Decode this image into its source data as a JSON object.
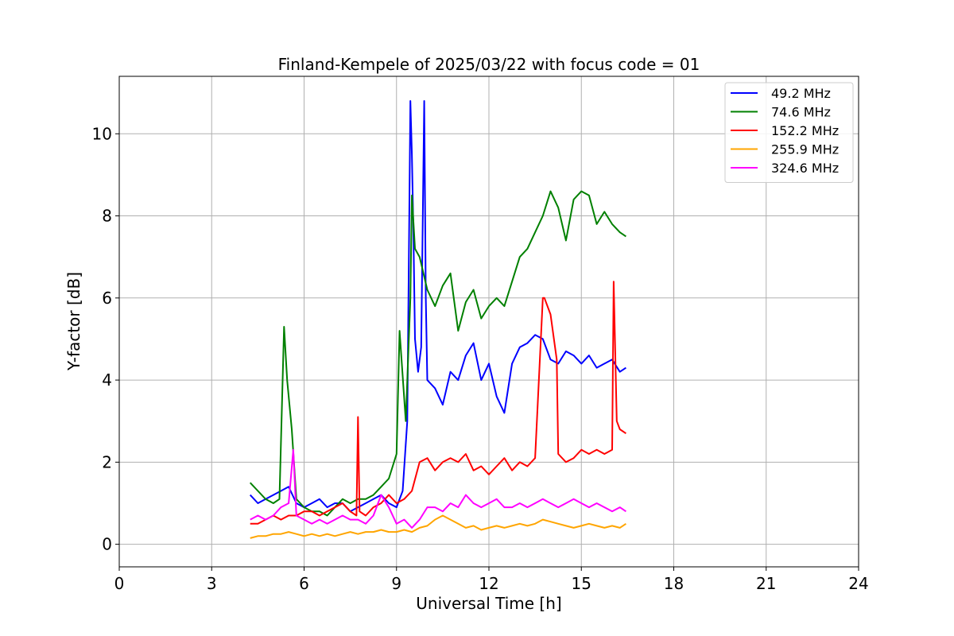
{
  "chart_data": {
    "type": "line",
    "title": "Finland-Kempele of 2025/03/22 with focus code = 01",
    "xlabel": "Universal Time [h]",
    "ylabel": "Y-factor [dB]",
    "xlim": [
      0,
      24
    ],
    "ylim": [
      -0.55,
      11.4
    ],
    "xticks": [
      0,
      3,
      6,
      9,
      12,
      15,
      18,
      21,
      24
    ],
    "yticks": [
      0,
      2,
      4,
      6,
      8,
      10
    ],
    "grid": true,
    "legend_position": "top-right",
    "series": [
      {
        "name": " 49.2 MHz",
        "color": "#0000ff",
        "x": [
          4.25,
          4.5,
          4.75,
          5.0,
          5.25,
          5.5,
          5.75,
          6.0,
          6.25,
          6.5,
          6.75,
          7.0,
          7.25,
          7.5,
          7.75,
          8.0,
          8.25,
          8.5,
          8.75,
          9.0,
          9.2,
          9.35,
          9.45,
          9.5,
          9.55,
          9.6,
          9.7,
          9.8,
          9.9,
          9.95,
          10.0,
          10.25,
          10.5,
          10.75,
          11.0,
          11.25,
          11.5,
          11.75,
          12.0,
          12.25,
          12.5,
          12.75,
          13.0,
          13.25,
          13.5,
          13.75,
          14.0,
          14.25,
          14.5,
          14.75,
          15.0,
          15.25,
          15.5,
          15.75,
          16.0,
          16.25,
          16.45
        ],
        "y": [
          1.2,
          1.0,
          1.1,
          1.2,
          1.3,
          1.4,
          1.0,
          0.9,
          1.0,
          1.1,
          0.9,
          1.0,
          1.0,
          0.8,
          0.9,
          1.0,
          1.1,
          1.2,
          1.0,
          0.9,
          1.3,
          3.0,
          10.8,
          9.5,
          7.5,
          5.0,
          4.2,
          4.8,
          10.8,
          6.0,
          4.0,
          3.8,
          3.4,
          4.2,
          4.0,
          4.6,
          4.9,
          4.0,
          4.4,
          3.6,
          3.2,
          4.4,
          4.8,
          4.9,
          5.1,
          5.0,
          4.5,
          4.4,
          4.7,
          4.6,
          4.4,
          4.6,
          4.3,
          4.4,
          4.5,
          4.2,
          4.3
        ]
      },
      {
        "name": " 74.6 MHz",
        "color": "#008000",
        "x": [
          4.25,
          4.5,
          4.75,
          5.0,
          5.2,
          5.35,
          5.45,
          5.6,
          5.75,
          6.0,
          6.25,
          6.5,
          6.75,
          7.0,
          7.25,
          7.5,
          7.75,
          8.0,
          8.25,
          8.5,
          8.75,
          9.0,
          9.1,
          9.3,
          9.45,
          9.5,
          9.6,
          9.75,
          10.0,
          10.25,
          10.5,
          10.75,
          11.0,
          11.25,
          11.5,
          11.75,
          12.0,
          12.25,
          12.5,
          12.75,
          13.0,
          13.25,
          13.5,
          13.75,
          14.0,
          14.25,
          14.5,
          14.75,
          15.0,
          15.25,
          15.5,
          15.75,
          16.0,
          16.25,
          16.45
        ],
        "y": [
          1.5,
          1.3,
          1.1,
          1.0,
          1.1,
          5.3,
          4.0,
          2.8,
          1.1,
          0.9,
          0.8,
          0.8,
          0.7,
          0.9,
          1.1,
          1.0,
          1.1,
          1.1,
          1.2,
          1.4,
          1.6,
          2.2,
          5.2,
          3.0,
          6.0,
          8.5,
          7.2,
          7.0,
          6.2,
          5.8,
          6.3,
          6.6,
          5.2,
          5.9,
          6.2,
          5.5,
          5.8,
          6.0,
          5.8,
          6.4,
          7.0,
          7.2,
          7.6,
          8.0,
          8.6,
          8.2,
          7.4,
          8.4,
          8.6,
          8.5,
          7.8,
          8.1,
          7.8,
          7.6,
          7.5
        ]
      },
      {
        "name": " 152.2 MHz",
        "color": "#ff0000",
        "x": [
          4.25,
          4.5,
          4.75,
          5.0,
          5.25,
          5.5,
          5.75,
          6.0,
          6.25,
          6.5,
          6.75,
          7.0,
          7.25,
          7.5,
          7.7,
          7.75,
          7.8,
          8.0,
          8.25,
          8.5,
          8.75,
          9.0,
          9.25,
          9.5,
          9.75,
          10.0,
          10.25,
          10.5,
          10.75,
          11.0,
          11.25,
          11.5,
          11.75,
          12.0,
          12.25,
          12.5,
          12.75,
          13.0,
          13.25,
          13.5,
          13.75,
          13.8,
          14.0,
          14.2,
          14.25,
          14.5,
          14.75,
          15.0,
          15.25,
          15.5,
          15.75,
          16.0,
          16.05,
          16.15,
          16.25,
          16.45
        ],
        "y": [
          0.5,
          0.5,
          0.6,
          0.7,
          0.6,
          0.7,
          0.7,
          0.8,
          0.8,
          0.7,
          0.8,
          0.9,
          1.0,
          0.8,
          0.7,
          3.1,
          0.8,
          0.7,
          0.9,
          1.0,
          1.2,
          1.0,
          1.1,
          1.3,
          2.0,
          2.1,
          1.8,
          2.0,
          2.1,
          2.0,
          2.2,
          1.8,
          1.9,
          1.7,
          1.9,
          2.1,
          1.8,
          2.0,
          1.9,
          2.1,
          6.0,
          6.0,
          5.6,
          4.5,
          2.2,
          2.0,
          2.1,
          2.3,
          2.2,
          2.3,
          2.2,
          2.3,
          6.4,
          3.0,
          2.8,
          2.7
        ]
      },
      {
        "name": " 255.9 MHz",
        "color": "#ffa500",
        "x": [
          4.25,
          4.5,
          4.75,
          5.0,
          5.25,
          5.5,
          5.75,
          6.0,
          6.25,
          6.5,
          6.75,
          7.0,
          7.25,
          7.5,
          7.75,
          8.0,
          8.25,
          8.5,
          8.75,
          9.0,
          9.25,
          9.5,
          9.75,
          10.0,
          10.25,
          10.5,
          10.75,
          11.0,
          11.25,
          11.5,
          11.75,
          12.0,
          12.25,
          12.5,
          12.75,
          13.0,
          13.25,
          13.5,
          13.75,
          14.0,
          14.25,
          14.5,
          14.75,
          15.0,
          15.25,
          15.5,
          15.75,
          16.0,
          16.25,
          16.45
        ],
        "y": [
          0.15,
          0.2,
          0.2,
          0.25,
          0.25,
          0.3,
          0.25,
          0.2,
          0.25,
          0.2,
          0.25,
          0.2,
          0.25,
          0.3,
          0.25,
          0.3,
          0.3,
          0.35,
          0.3,
          0.3,
          0.35,
          0.3,
          0.4,
          0.45,
          0.6,
          0.7,
          0.6,
          0.5,
          0.4,
          0.45,
          0.35,
          0.4,
          0.45,
          0.4,
          0.45,
          0.5,
          0.45,
          0.5,
          0.6,
          0.55,
          0.5,
          0.45,
          0.4,
          0.45,
          0.5,
          0.45,
          0.4,
          0.45,
          0.4,
          0.5
        ]
      },
      {
        "name": " 324.6 MHz",
        "color": "#ff00ff",
        "x": [
          4.25,
          4.5,
          4.75,
          5.0,
          5.25,
          5.5,
          5.65,
          5.75,
          6.0,
          6.25,
          6.5,
          6.75,
          7.0,
          7.25,
          7.5,
          7.75,
          8.0,
          8.25,
          8.5,
          8.75,
          9.0,
          9.25,
          9.5,
          9.75,
          10.0,
          10.25,
          10.5,
          10.75,
          11.0,
          11.25,
          11.5,
          11.75,
          12.0,
          12.25,
          12.5,
          12.75,
          13.0,
          13.25,
          13.5,
          13.75,
          14.0,
          14.25,
          14.5,
          14.75,
          15.0,
          15.25,
          15.5,
          15.75,
          16.0,
          16.25,
          16.45
        ],
        "y": [
          0.6,
          0.7,
          0.6,
          0.7,
          0.9,
          1.0,
          2.3,
          0.7,
          0.6,
          0.5,
          0.6,
          0.5,
          0.6,
          0.7,
          0.6,
          0.6,
          0.5,
          0.7,
          1.2,
          0.9,
          0.5,
          0.6,
          0.4,
          0.6,
          0.9,
          0.9,
          0.8,
          1.0,
          0.9,
          1.2,
          1.0,
          0.9,
          1.0,
          1.1,
          0.9,
          0.9,
          1.0,
          0.9,
          1.0,
          1.1,
          1.0,
          0.9,
          1.0,
          1.1,
          1.0,
          0.9,
          1.0,
          0.9,
          0.8,
          0.9,
          0.8
        ]
      }
    ]
  }
}
